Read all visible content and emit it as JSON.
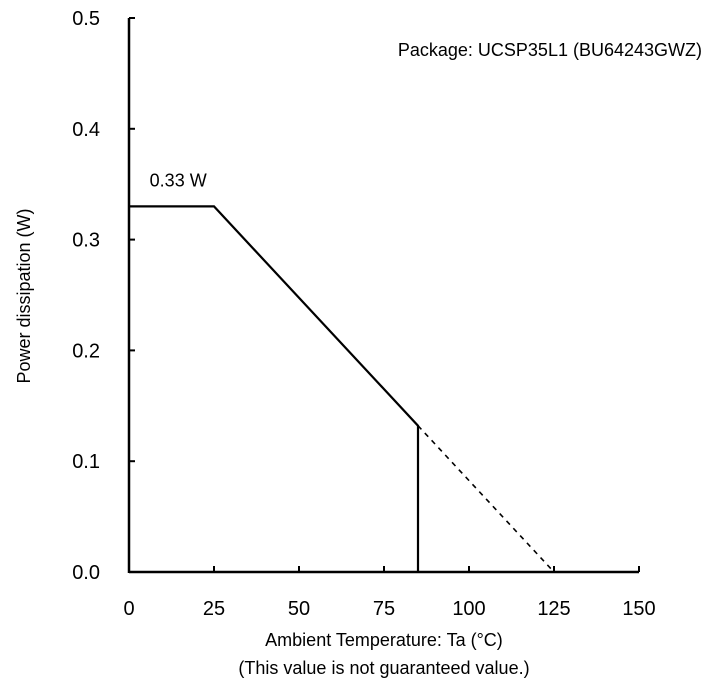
{
  "chart_data": {
    "type": "line",
    "xlabel": "Ambient Temperature: Ta (°C)",
    "xlabel_note": "(This value is not guaranteed value.)",
    "ylabel": "Power dissipation (W)",
    "xlim": [
      0,
      150
    ],
    "ylim": [
      0,
      0.5
    ],
    "x_ticks": [
      "0",
      "25",
      "50",
      "75",
      "100",
      "125",
      "150"
    ],
    "y_ticks": [
      "0.0",
      "0.1",
      "0.2",
      "0.3",
      "0.4",
      "0.5"
    ],
    "grid": false,
    "series": [
      {
        "style": "solid",
        "x": [
          0,
          25,
          85,
          85
        ],
        "y": [
          0.33,
          0.33,
          0.132,
          0
        ]
      },
      {
        "style": "dashed",
        "x": [
          85,
          125
        ],
        "y": [
          0.132,
          0
        ]
      }
    ],
    "annotations": [
      {
        "text": "Package: UCSP35L1 (BU64243GWZ)",
        "anchor": "top-right"
      },
      {
        "text": "0.33 W",
        "x": 13,
        "y": 0.33
      }
    ]
  }
}
